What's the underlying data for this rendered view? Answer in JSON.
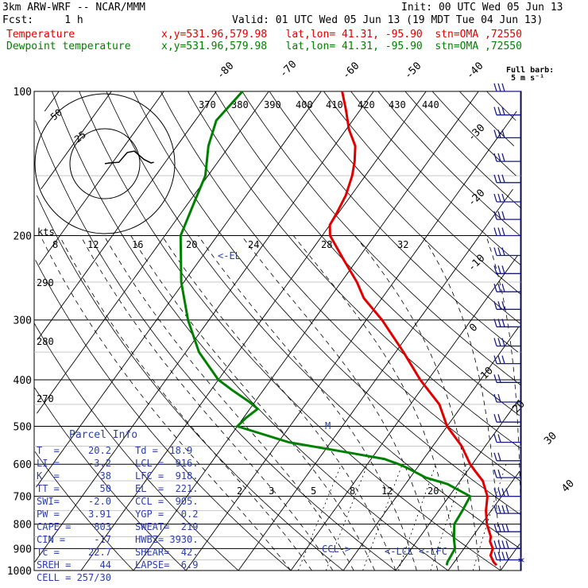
{
  "header": {
    "model": "3km ARW-WRF -- NCAR/MMM",
    "init": "Init: 00 UTC Wed 05 Jun 13",
    "fcst": "Fcst:     1 h",
    "valid": "Valid: 01 UTC Wed 05 Jun 13 (19 MDT Tue 04 Jun 13)",
    "temp_label": "Temperature",
    "temp_info": "x,y=531.96,579.98   lat,lon= 41.31, -95.90  stn=OMA ,72550",
    "dew_label": "Dewpoint temperature",
    "dew_info": "x,y=531.96,579.98   lat,lon= 41.31, -95.90  stn=OMA ,72550",
    "barb_note": "Full barb:",
    "barb_unit": "5 m s⁻¹"
  },
  "colors": {
    "temperature": "#e00000",
    "dewpoint": "#008000",
    "text": "#000000",
    "parcel": "#2a3fa8",
    "barb": "#1a1a8a"
  },
  "chart_data": {
    "type": "line",
    "diagram": "skew-T log-p",
    "pressure_levels": [
      100,
      200,
      300,
      400,
      500,
      600,
      700,
      800,
      900,
      1000
    ],
    "pressure_labels": [
      "100",
      "200",
      "300",
      "400",
      "500",
      "600",
      "700",
      "800",
      "900",
      "1000"
    ],
    "isotherm_labels": [
      "-80",
      "-70",
      "-60",
      "-50",
      "-40",
      "-30",
      "-20",
      "-10",
      "0",
      "10",
      "20",
      "30",
      "40"
    ],
    "theta_labels": [
      "370",
      "380",
      "390",
      "400",
      "410",
      "420",
      "430",
      "440"
    ],
    "theta_e_labels": [
      "290",
      "280",
      "270"
    ],
    "mixing_ratio_labels": [
      "2",
      "3",
      "5",
      "8",
      "12",
      "20"
    ],
    "series": [
      {
        "name": "Temperature",
        "p": [
          975,
          960,
          930,
          900,
          870,
          850,
          800,
          750,
          700,
          650,
          620,
          600,
          550,
          500,
          450,
          400,
          350,
          300,
          270,
          250,
          225,
          200,
          190,
          180,
          165,
          150,
          140,
          130,
          120,
          110,
          100
        ],
        "t": [
          28.5,
          27.5,
          26.0,
          25.5,
          24.0,
          23.5,
          21.0,
          19.0,
          17.3,
          14.3,
          11.5,
          9.6,
          5.5,
          0.0,
          -4.5,
          -11.5,
          -18.5,
          -27.0,
          -33.5,
          -37.0,
          -42.5,
          -48.5,
          -50.0,
          -50.3,
          -51.0,
          -52.5,
          -54.0,
          -56.0,
          -59.5,
          -62.5,
          -66.0
        ]
      },
      {
        "name": "Dewpoint temperature",
        "p": [
          975,
          960,
          930,
          900,
          860,
          800,
          750,
          700,
          660,
          640,
          610,
          600,
          585,
          570,
          540,
          500,
          480,
          460,
          445,
          420,
          400,
          350,
          300,
          250,
          200,
          170,
          150,
          130,
          115,
          100
        ],
        "t": [
          19.0,
          18.7,
          18.5,
          18.3,
          16.8,
          14.8,
          14.5,
          14.0,
          8.0,
          3.0,
          -2.0,
          -4.0,
          -7.5,
          -14.0,
          -28.0,
          -40.0,
          -39.5,
          -38.5,
          -41.0,
          -46.0,
          -50.0,
          -57.5,
          -64.0,
          -70.5,
          -77.0,
          -79.0,
          -80.5,
          -84.0,
          -86.0,
          -85.0
        ]
      }
    ],
    "hodograph": {
      "ring_labels": [
        "50",
        "25"
      ],
      "ring_speeds": [
        25,
        50
      ],
      "unit_label": "kts",
      "points": [
        [
          0,
          0
        ],
        [
          3,
          0.5
        ],
        [
          10,
          1
        ],
        [
          16,
          8
        ],
        [
          21,
          9
        ],
        [
          28,
          3
        ],
        [
          33,
          0.5
        ],
        [
          35,
          1
        ]
      ]
    },
    "wind_barbs": {
      "pressures": [
        100,
        112,
        125,
        140,
        155,
        170,
        185,
        200,
        220,
        240,
        262,
        285,
        310,
        340,
        370,
        405,
        445,
        490,
        540,
        590,
        640,
        700,
        760,
        830,
        900,
        950
      ]
    },
    "annotations": {
      "el": "<-EL",
      "m": "M",
      "ccl": "CCL->",
      "lcl": "<-LCL",
      "lfc": "<-LFC"
    }
  },
  "parcel": {
    "title": "Parcel Info",
    "rows": [
      [
        "T  =     20.2",
        "Td =  18.9"
      ],
      [
        "LI =     -3.2",
        "LCL =  916."
      ],
      [
        "K  =       38",
        "LFC =  918."
      ],
      [
        "TT =       50",
        "EL  =  221."
      ],
      [
        "SWI=     -2.0",
        "CCL =  905."
      ],
      [
        "PW =     3.91",
        "YGP =   0.2"
      ],
      [
        "CAPE =    803",
        "SWEAT=  219"
      ],
      [
        "CIN =     -17",
        "HWBZ= 3930."
      ],
      [
        "Tc =     22.7",
        "SHEAR=  42."
      ],
      [
        "SREH =     44",
        "LAPSE=  6.9"
      ],
      [
        "CELL = 257/30",
        ""
      ]
    ]
  }
}
